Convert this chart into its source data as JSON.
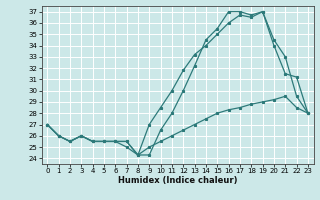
{
  "xlabel": "Humidex (Indice chaleur)",
  "bg_color": "#cce8e8",
  "grid_color": "#ffffff",
  "line_color": "#2d7a7a",
  "xlim": [
    -0.5,
    23.5
  ],
  "ylim": [
    23.5,
    37.5
  ],
  "xticks": [
    0,
    1,
    2,
    3,
    4,
    5,
    6,
    7,
    8,
    9,
    10,
    11,
    12,
    13,
    14,
    15,
    16,
    17,
    18,
    19,
    20,
    21,
    22,
    23
  ],
  "yticks": [
    24,
    25,
    26,
    27,
    28,
    29,
    30,
    31,
    32,
    33,
    34,
    35,
    36,
    37
  ],
  "line1": [
    27,
    26,
    25.5,
    26,
    25.5,
    25.5,
    25.5,
    25.0,
    24.3,
    24.3,
    26.5,
    28.0,
    30.0,
    32.2,
    34.5,
    35.5,
    37.0,
    37.0,
    36.7,
    37.0,
    34.5,
    33.0,
    29.5,
    28.0
  ],
  "line2": [
    27,
    26,
    25.5,
    26,
    25.5,
    25.5,
    25.5,
    25.5,
    24.3,
    27.0,
    28.5,
    30.0,
    31.8,
    33.2,
    34.0,
    35.0,
    36.0,
    36.7,
    36.5,
    37.0,
    34.0,
    31.5,
    31.2,
    28.0
  ],
  "line3": [
    27,
    26,
    25.5,
    26,
    25.5,
    25.5,
    25.5,
    25.5,
    24.3,
    25.0,
    25.5,
    26.0,
    26.5,
    27.0,
    27.5,
    28.0,
    28.3,
    28.5,
    28.8,
    29.0,
    29.2,
    29.5,
    28.5,
    28.0
  ]
}
